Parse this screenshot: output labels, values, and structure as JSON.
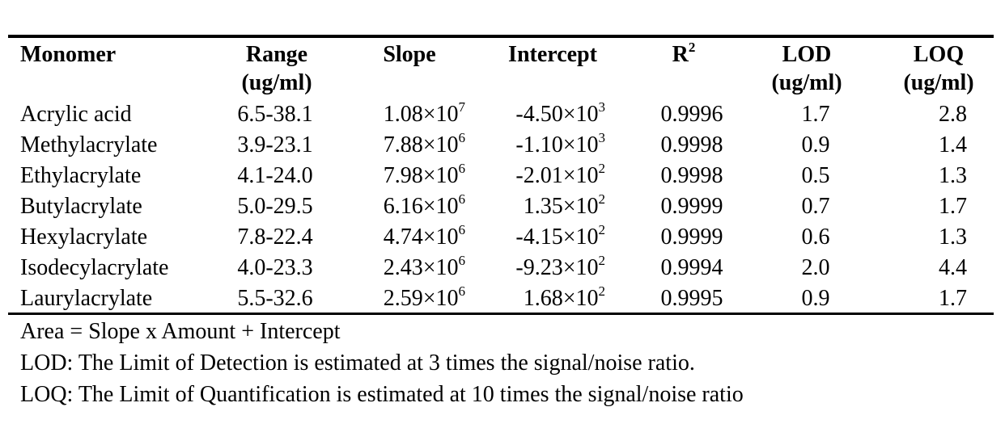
{
  "table": {
    "header": [
      {
        "lines": [
          "Monomer"
        ]
      },
      {
        "lines": [
          "Range",
          "(ug/ml)"
        ]
      },
      {
        "lines": [
          "Slope"
        ]
      },
      {
        "lines": [
          "Intercept"
        ]
      },
      {
        "base": "R",
        "sup": "2"
      },
      {
        "lines": [
          "LOD",
          "(ug/ml)"
        ]
      },
      {
        "lines": [
          "LOQ",
          "(ug/ml)"
        ]
      }
    ],
    "rows": [
      [
        "Acrylic acid",
        "6.5-38.1",
        {
          "base": "1.08×10",
          "sup": "7"
        },
        {
          "base": "-4.50×10",
          "sup": "3"
        },
        "0.9996",
        "1.7",
        "2.8"
      ],
      [
        "Methylacrylate",
        "3.9-23.1",
        {
          "base": "7.88×10",
          "sup": "6"
        },
        {
          "base": "-1.10×10",
          "sup": "3"
        },
        "0.9998",
        "0.9",
        "1.4"
      ],
      [
        "Ethylacrylate",
        "4.1-24.0",
        {
          "base": "7.98×10",
          "sup": "6"
        },
        {
          "base": "-2.01×10",
          "sup": "2"
        },
        "0.9998",
        "0.5",
        "1.3"
      ],
      [
        "Butylacrylate",
        "5.0-29.5",
        {
          "base": "6.16×10",
          "sup": "6"
        },
        {
          "base": "1.35×10",
          "sup": "2"
        },
        "0.9999",
        "0.7",
        "1.7"
      ],
      [
        "Hexylacrylate",
        "7.8-22.4",
        {
          "base": "4.74×10",
          "sup": "6"
        },
        {
          "base": "-4.15×10",
          "sup": "2"
        },
        "0.9999",
        "0.6",
        "1.3"
      ],
      [
        "Isodecylacrylate",
        "4.0-23.3",
        {
          "base": "2.43×10",
          "sup": "6"
        },
        {
          "base": "-9.23×10",
          "sup": "2"
        },
        "0.9994",
        "2.0",
        "4.4"
      ],
      [
        "Laurylacrylate",
        "5.5-32.6",
        {
          "base": "2.59×10",
          "sup": "6"
        },
        {
          "base": "1.68×10",
          "sup": "2"
        },
        "0.9995",
        "0.9",
        "1.7"
      ]
    ]
  },
  "notes": [
    "Area = Slope x Amount + Intercept",
    "LOD: The Limit of Detection is estimated at 3 times the signal/noise ratio.",
    "LOQ: The Limit of Quantification is estimated at 10 times the signal/noise ratio"
  ]
}
